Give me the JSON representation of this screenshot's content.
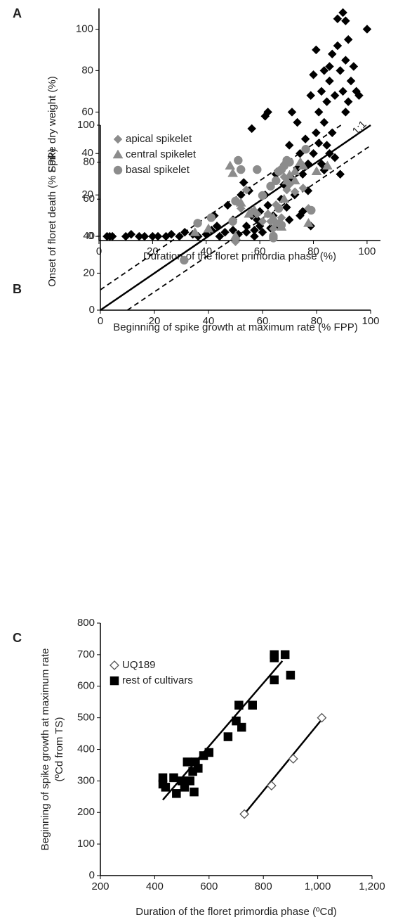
{
  "chart_data": [
    {
      "type": "scatter",
      "panel": "A",
      "xlabel": "Duration of the floret primordia phase (%)",
      "ylabel": "Spike dry weight (%)",
      "xlim": [
        0,
        105
      ],
      "ylim": [
        -2,
        110
      ],
      "xticks": [
        0,
        20,
        40,
        60,
        80,
        100
      ],
      "yticks": [
        0,
        20,
        40,
        60,
        80,
        100
      ],
      "series": [
        {
          "color": "#000000",
          "marker": "diamond",
          "x": [
            3,
            4,
            5,
            10,
            12,
            15,
            17,
            20,
            22,
            25,
            27,
            30,
            32,
            35,
            37,
            40,
            42,
            43,
            44,
            45,
            47,
            48,
            50,
            50,
            52,
            53,
            54,
            55,
            55,
            56,
            57,
            57,
            58,
            58,
            59,
            60,
            60,
            61,
            62,
            62,
            63,
            63,
            64,
            65,
            66,
            67,
            68,
            69,
            70,
            70,
            71,
            71,
            72,
            72,
            73,
            74,
            74,
            75,
            75,
            76,
            76,
            77,
            78,
            78,
            79,
            79,
            80,
            80,
            81,
            81,
            82,
            82,
            83,
            83,
            84,
            84,
            85,
            85,
            86,
            86,
            87,
            87,
            88,
            89,
            90,
            90,
            91,
            91,
            92,
            92,
            93,
            93,
            94,
            95,
            96,
            97,
            100,
            89,
            92,
            86,
            88,
            84
          ],
          "values": [
            0,
            0,
            0,
            0,
            1,
            0,
            0,
            0,
            0,
            0,
            1,
            0,
            2,
            1,
            0,
            1,
            3,
            10,
            5,
            0,
            2,
            15,
            3,
            8,
            1,
            20,
            26,
            5,
            2,
            22,
            10,
            52,
            0,
            3,
            8,
            12,
            5,
            2,
            20,
            58,
            15,
            60,
            4,
            10,
            30,
            5,
            18,
            25,
            36,
            14,
            44,
            8,
            60,
            28,
            20,
            33,
            55,
            40,
            10,
            30,
            12,
            47,
            22,
            35,
            68,
            5,
            40,
            78,
            50,
            90,
            45,
            60,
            70,
            35,
            55,
            80,
            44,
            65,
            75,
            40,
            88,
            50,
            68,
            92,
            80,
            30,
            108,
            70,
            85,
            60,
            95,
            65,
            75,
            82,
            70,
            68,
            100,
            105,
            104,
            82,
            38,
            32
          ]
        }
      ]
    },
    {
      "type": "scatter",
      "panel": "B",
      "xlabel": "Beginning of spike growth at maximum rate (% FPP)",
      "ylabel": "Onset of floret death (% FPP)",
      "xlim": [
        0,
        100
      ],
      "ylim": [
        0,
        100
      ],
      "xticks": [
        0,
        20,
        40,
        60,
        80,
        100
      ],
      "yticks": [
        0,
        20,
        40,
        60,
        80,
        100
      ],
      "legend": "upper left",
      "annotation": "1:1",
      "lines": [
        {
          "points": [
            [
              0,
              0
            ],
            [
              100,
              100
            ]
          ],
          "dash": false
        },
        {
          "points": [
            [
              0,
              11
            ],
            [
              89,
              100
            ]
          ],
          "dash": true
        },
        {
          "points": [
            [
              10,
              0
            ],
            [
              100,
              89
            ]
          ],
          "dash": true
        }
      ],
      "series": [
        {
          "name": "apical spikelet",
          "color": "#8c8c8c",
          "marker": "diamond",
          "x": [
            50,
            52,
            54,
            56,
            58,
            60,
            62,
            64,
            65,
            66,
            67,
            68,
            70,
            72,
            75,
            77,
            63,
            69
          ],
          "values": [
            37,
            55,
            65,
            53,
            52,
            48,
            52,
            44,
            57,
            55,
            50,
            72,
            68,
            64,
            66,
            55,
            48,
            65
          ]
        },
        {
          "name": "central spikelet",
          "color": "#8c8c8c",
          "marker": "triangle",
          "x": [
            35,
            40,
            48,
            49,
            52,
            50,
            55,
            57,
            62,
            64,
            65,
            66,
            67,
            68,
            69,
            70,
            72,
            74,
            75,
            77,
            80,
            84,
            72
          ],
          "values": [
            42,
            44,
            78,
            74,
            58,
            40,
            52,
            54,
            52,
            50,
            47,
            47,
            45,
            60,
            70,
            73,
            75,
            80,
            78,
            47,
            75,
            78,
            70
          ]
        },
        {
          "name": "basal spikelet",
          "color": "#8c8c8c",
          "marker": "circle",
          "x": [
            31,
            36,
            41,
            49,
            50,
            51,
            52,
            58,
            60,
            63,
            64,
            64,
            65,
            66,
            67,
            68,
            69,
            70,
            76,
            78,
            66,
            67
          ],
          "values": [
            27,
            47,
            50,
            48,
            59,
            81,
            76,
            76,
            62,
            67,
            40,
            39,
            70,
            75,
            76,
            78,
            81,
            80,
            87,
            54,
            55,
            46
          ]
        }
      ]
    },
    {
      "type": "scatter",
      "panel": "C",
      "xlabel": "Duration of the floret primordia phase (ºCd)",
      "ylabel": [
        "Beginning of spike growth at maximum rate",
        "(ºCd from TS)"
      ],
      "xlim": [
        200,
        1200
      ],
      "ylim": [
        0,
        800
      ],
      "xticks": [
        200,
        400,
        600,
        800,
        {
          "value": 1000,
          "label": "1,000"
        },
        {
          "value": 1200,
          "label": "1,200"
        }
      ],
      "yticks": [
        0,
        100,
        200,
        300,
        400,
        500,
        600,
        700,
        800
      ],
      "legend": "upper left",
      "lines": [
        {
          "points": [
            [
              430,
              240
            ],
            [
              870,
              680
            ]
          ],
          "dash": false
        },
        {
          "points": [
            [
              730,
              195
            ],
            [
              1020,
              500
            ]
          ],
          "dash": false
        }
      ],
      "series": [
        {
          "name": "UQ189",
          "color": "#555555",
          "fill": "#ffffff",
          "marker": "diamond",
          "x": [
            730,
            830,
            910,
            1015
          ],
          "values": [
            195,
            285,
            370,
            500
          ]
        },
        {
          "name": "rest of cultivars",
          "color": "#000000",
          "marker": "square",
          "x": [
            430,
            430,
            440,
            470,
            480,
            500,
            510,
            520,
            530,
            540,
            545,
            550,
            560,
            580,
            600,
            670,
            700,
            710,
            720,
            760,
            840,
            840,
            840,
            880,
            900
          ],
          "values": [
            310,
            290,
            280,
            310,
            260,
            300,
            280,
            360,
            300,
            330,
            265,
            360,
            340,
            380,
            390,
            440,
            490,
            540,
            470,
            540,
            700,
            690,
            620,
            700,
            635
          ]
        }
      ]
    }
  ]
}
